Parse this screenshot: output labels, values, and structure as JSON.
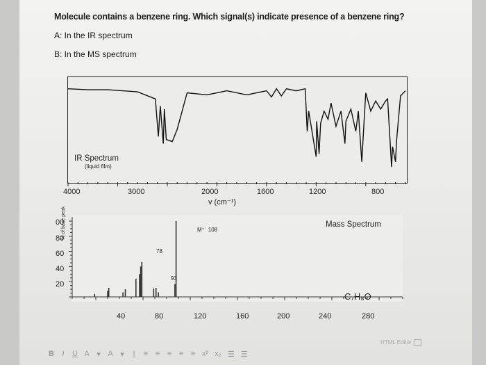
{
  "question": {
    "text": "Molecule contains a benzene ring. Which signal(s) indicate presence of a benzene ring?",
    "options": [
      "A: In the IR spectrum",
      "B: In the MS spectrum"
    ]
  },
  "chart_data": [
    {
      "type": "line",
      "title": "IR Spectrum",
      "subtitle": "(liquid film)",
      "xlabel": "v (cm⁻¹)",
      "xlim": [
        4000,
        600
      ],
      "x_ticks": [
        "4000",
        "3000",
        "2000",
        "1600",
        "1200",
        "800"
      ],
      "series": [
        {
          "x": [
            4000,
            3800,
            3600,
            3300,
            3120,
            3090,
            3070,
            3040,
            3030,
            3010,
            2950,
            2900,
            2800,
            2600,
            2400,
            2200,
            2000,
            1950,
            1900,
            1850,
            1800,
            1700,
            1610,
            1590,
            1575,
            1500,
            1495,
            1470,
            1455,
            1420,
            1380,
            1350,
            1300,
            1250,
            1210,
            1200,
            1150,
            1100,
            1075,
            1040,
            1020,
            1000,
            950,
            900,
            850,
            800,
            780,
            740,
            730,
            700,
            690,
            650,
            600
          ],
          "values": [
            92,
            91,
            91,
            89,
            82,
            45,
            75,
            38,
            72,
            42,
            40,
            52,
            88,
            86,
            90,
            86,
            90,
            84,
            92,
            85,
            92,
            90,
            92,
            50,
            70,
            25,
            60,
            28,
            58,
            70,
            62,
            78,
            55,
            70,
            38,
            60,
            72,
            50,
            70,
            20,
            55,
            88,
            70,
            80,
            72,
            80,
            82,
            15,
            35,
            20,
            40,
            85,
            90
          ]
        }
      ]
    },
    {
      "type": "bar",
      "title": "Mass Spectrum",
      "ylabel": "% of base peak",
      "y_ticks": [
        "00",
        "80",
        "60",
        "40",
        "20"
      ],
      "ylim": [
        0,
        100
      ],
      "x_ticks": [
        "40",
        "80",
        "120",
        "160",
        "200",
        "240",
        "280"
      ],
      "xlim": [
        20,
        300
      ],
      "bars": [
        {
          "x": 39,
          "value": 4
        },
        {
          "x": 50,
          "value": 8
        },
        {
          "x": 51,
          "value": 12
        },
        {
          "x": 63,
          "value": 6
        },
        {
          "x": 65,
          "value": 10
        },
        {
          "x": 74,
          "value": 24
        },
        {
          "x": 77,
          "value": 30
        },
        {
          "x": 78,
          "value": 40
        },
        {
          "x": 79,
          "value": 46
        },
        {
          "x": 89,
          "value": 11
        },
        {
          "x": 91,
          "value": 12
        },
        {
          "x": 93,
          "value": 6
        },
        {
          "x": 107,
          "value": 17
        },
        {
          "x": 108,
          "value": 100
        }
      ],
      "annotations": [
        {
          "text": "M⁺˙ 108",
          "x": 108
        },
        {
          "text": "78",
          "x": 78
        },
        {
          "text": "93",
          "x": 93
        }
      ],
      "formula": "C₇H₈O"
    }
  ],
  "toolbar": {
    "items": [
      "B",
      "I",
      "U",
      "A",
      "▾",
      "A",
      "▾",
      "I̲",
      "≡",
      "≡",
      "≡",
      "≡",
      "≡",
      "x²",
      "x₂",
      "☰",
      "☰"
    ],
    "html_editor": "HTML Editor"
  }
}
